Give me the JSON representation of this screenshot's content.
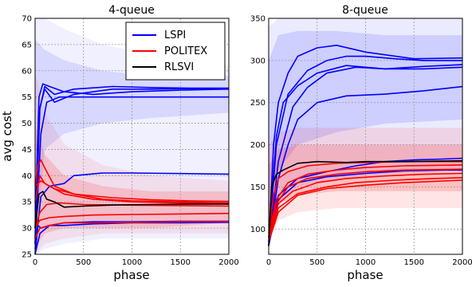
{
  "chart_data": [
    {
      "type": "line",
      "title": "4-queue",
      "xlabel": "phase",
      "ylabel": "avg cost",
      "xlim": [
        0,
        2000
      ],
      "ylim": [
        25,
        70
      ],
      "xticks": [
        "0",
        "500",
        "1000",
        "1500",
        "2000"
      ],
      "yticks": [
        "25",
        "30",
        "35",
        "40",
        "45",
        "50",
        "55",
        "60",
        "65",
        "70"
      ],
      "grid": true,
      "legend": {
        "placement": "top-right",
        "entries": [
          {
            "label": "LSPI",
            "color": "#0000ff"
          },
          {
            "label": "POLITEX",
            "color": "#ff0000"
          },
          {
            "label": "RLSVI",
            "color": "#000000"
          }
        ]
      },
      "bands": [
        {
          "color": "#0000ff",
          "opacity": 0.06,
          "x": [
            0,
            100,
            300,
            700,
            1200,
            2000
          ],
          "upper": [
            70,
            70,
            68,
            65,
            63,
            61
          ],
          "lower": [
            25,
            26,
            27,
            28,
            28,
            28
          ]
        },
        {
          "color": "#0000ff",
          "opacity": 0.1,
          "x": [
            0,
            100,
            300,
            700,
            1200,
            2000
          ],
          "upper": [
            66,
            64,
            62,
            60,
            59,
            59
          ],
          "lower": [
            27,
            45,
            48,
            50,
            51,
            52
          ]
        },
        {
          "color": "#ff0000",
          "opacity": 0.08,
          "x": [
            0,
            100,
            300,
            700,
            1200,
            2000
          ],
          "upper": [
            60,
            52,
            46,
            42,
            40,
            39
          ],
          "lower": [
            25,
            27,
            28,
            29,
            29,
            29
          ]
        },
        {
          "color": "#ff0000",
          "opacity": 0.14,
          "x": [
            0,
            100,
            300,
            700,
            1200,
            2000
          ],
          "upper": [
            50,
            44,
            40,
            38,
            37,
            37
          ],
          "lower": [
            26,
            29,
            30,
            30,
            30,
            31
          ]
        }
      ],
      "series": [
        {
          "color": "#0000ff",
          "x": [
            0,
            40,
            80,
            150,
            300,
            600,
            1000,
            1500,
            2000
          ],
          "y": [
            30,
            55,
            57.5,
            57,
            56,
            55.5,
            56,
            56.3,
            56.5
          ]
        },
        {
          "color": "#0000ff",
          "x": [
            0,
            40,
            100,
            200,
            400,
            800,
            1200,
            1600,
            2000
          ],
          "y": [
            28,
            52,
            57,
            55.5,
            56.5,
            57,
            56.8,
            56.7,
            56.7
          ]
        },
        {
          "color": "#0000ff",
          "x": [
            0,
            50,
            100,
            200,
            400,
            800,
            1200,
            1600,
            2000
          ],
          "y": [
            27,
            53,
            56.5,
            54,
            55.5,
            56.5,
            56.5,
            56.6,
            56.6
          ]
        },
        {
          "color": "#0000ff",
          "x": [
            0,
            60,
            120,
            250,
            500,
            800,
            1200,
            1600,
            2000
          ],
          "y": [
            27,
            48,
            54,
            55,
            55,
            55,
            55,
            55,
            55
          ]
        },
        {
          "color": "#0000ff",
          "x": [
            0,
            60,
            150,
            300,
            400,
            700,
            1000,
            1500,
            2000
          ],
          "y": [
            26,
            36,
            38,
            38.5,
            40,
            40.5,
            40.5,
            40.4,
            40.3
          ]
        },
        {
          "color": "#0000ff",
          "x": [
            0,
            30,
            60,
            150,
            300,
            600,
            1000,
            1500,
            2000
          ],
          "y": [
            25,
            30.5,
            30,
            30.5,
            31,
            31.2,
            31.2,
            31.3,
            31.3
          ]
        },
        {
          "color": "#0000ff",
          "x": [
            0,
            50,
            150,
            300,
            600,
            1000,
            1500,
            2000
          ],
          "y": [
            25,
            29,
            30.5,
            30.5,
            30.8,
            31,
            31,
            31.1
          ]
        },
        {
          "color": "#ff0000",
          "x": [
            0,
            30,
            60,
            100,
            200,
            400,
            700,
            1000,
            1500,
            2000
          ],
          "y": [
            38,
            42,
            43,
            41.5,
            38,
            36.5,
            35.5,
            35.2,
            35,
            34.8
          ]
        },
        {
          "color": "#ff0000",
          "x": [
            0,
            50,
            100,
            200,
            400,
            800,
            1200,
            1600,
            2000
          ],
          "y": [
            35,
            40,
            38.5,
            37.5,
            36.5,
            35.8,
            35.4,
            35.2,
            35.1
          ]
        },
        {
          "color": "#ff0000",
          "x": [
            0,
            60,
            150,
            300,
            600,
            1000,
            1500,
            2000
          ],
          "y": [
            38,
            39,
            38,
            36.5,
            35.5,
            35,
            34.8,
            34.6
          ]
        },
        {
          "color": "#ff0000",
          "x": [
            0,
            50,
            120,
            250,
            500,
            900,
            1400,
            2000
          ],
          "y": [
            30,
            33,
            34.5,
            34.8,
            34.5,
            34.4,
            34.3,
            34.2
          ]
        },
        {
          "color": "#ff0000",
          "x": [
            0,
            50,
            150,
            300,
            600,
            1000,
            1500,
            2000
          ],
          "y": [
            30,
            31.5,
            32,
            32.2,
            32.5,
            32.6,
            32.7,
            32.8
          ]
        },
        {
          "color": "#ff0000",
          "x": [
            0,
            50,
            150,
            300,
            600,
            1000,
            1500,
            2000
          ],
          "y": [
            28,
            30,
            30.5,
            31,
            31,
            31.1,
            31.2,
            31.2
          ]
        },
        {
          "color": "#000000",
          "x": [
            0,
            40,
            80,
            120,
            200,
            300,
            500,
            800,
            1200,
            1600,
            2000
          ],
          "y": [
            30,
            36.5,
            37,
            35.5,
            35,
            34,
            34.2,
            34.4,
            34.5,
            34.6,
            34.6
          ]
        }
      ]
    },
    {
      "type": "line",
      "title": "8-queue",
      "xlabel": "phase",
      "ylabel": "",
      "xlim": [
        0,
        2000
      ],
      "ylim": [
        70,
        350
      ],
      "xticks": [
        "0",
        "500",
        "1000",
        "1500",
        "2000"
      ],
      "yticks": [
        "100",
        "150",
        "200",
        "250",
        "300",
        "350"
      ],
      "grid": true,
      "bands": [
        {
          "color": "#0000ff",
          "opacity": 0.08,
          "x": [
            0,
            100,
            300,
            700,
            1200,
            2000
          ],
          "upper": [
            340,
            350,
            350,
            350,
            350,
            350
          ],
          "lower": [
            90,
            130,
            150,
            160,
            165,
            170
          ]
        },
        {
          "color": "#0000ff",
          "opacity": 0.12,
          "x": [
            0,
            100,
            300,
            700,
            1200,
            2000
          ],
          "upper": [
            300,
            330,
            335,
            335,
            330,
            330
          ],
          "lower": [
            100,
            170,
            200,
            215,
            225,
            230
          ]
        },
        {
          "color": "#ff0000",
          "opacity": 0.1,
          "x": [
            0,
            100,
            300,
            700,
            1200,
            2000
          ],
          "upper": [
            200,
            215,
            220,
            220,
            220,
            220
          ],
          "lower": [
            85,
            110,
            120,
            125,
            125,
            125
          ]
        },
        {
          "color": "#ff0000",
          "opacity": 0.16,
          "x": [
            0,
            100,
            300,
            700,
            1200,
            2000
          ],
          "upper": [
            175,
            195,
            200,
            200,
            200,
            200
          ],
          "lower": [
            95,
            130,
            140,
            145,
            145,
            145
          ]
        }
      ],
      "series": [
        {
          "color": "#0000ff",
          "x": [
            0,
            50,
            100,
            200,
            300,
            500,
            700,
            1000,
            1500,
            2000
          ],
          "y": [
            80,
            200,
            250,
            285,
            305,
            315,
            318,
            310,
            302,
            303
          ]
        },
        {
          "color": "#0000ff",
          "x": [
            0,
            80,
            200,
            400,
            600,
            800,
            1000,
            1300,
            1600,
            2000
          ],
          "y": [
            85,
            200,
            260,
            288,
            300,
            305,
            305,
            302,
            300,
            300
          ]
        },
        {
          "color": "#0000ff",
          "x": [
            0,
            80,
            150,
            300,
            500,
            800,
            1200,
            1600,
            2000
          ],
          "y": [
            90,
            210,
            250,
            270,
            285,
            294,
            290,
            293,
            295
          ]
        },
        {
          "color": "#0000ff",
          "x": [
            0,
            100,
            250,
            400,
            600,
            900,
            1200,
            1600,
            2000
          ],
          "y": [
            80,
            180,
            245,
            268,
            285,
            292,
            290,
            290,
            292
          ]
        },
        {
          "color": "#0000ff",
          "x": [
            0,
            100,
            200,
            300,
            500,
            800,
            1200,
            1600,
            2000
          ],
          "y": [
            80,
            160,
            200,
            230,
            250,
            258,
            260,
            264,
            269
          ]
        },
        {
          "color": "#0000ff",
          "x": [
            0,
            100,
            300,
            600,
            900,
            1200,
            1500,
            1800,
            2000
          ],
          "y": [
            85,
            140,
            160,
            168,
            175,
            180,
            182,
            183,
            184
          ]
        },
        {
          "color": "#0000ff",
          "x": [
            0,
            100,
            300,
            600,
            1000,
            1400,
            1800,
            2000
          ],
          "y": [
            80,
            135,
            155,
            162,
            166,
            169,
            170,
            170
          ]
        },
        {
          "color": "#ff0000",
          "x": [
            0,
            50,
            100,
            200,
            400,
            700,
            1000,
            1500,
            2000
          ],
          "y": [
            95,
            140,
            160,
            168,
            175,
            178,
            179,
            180,
            180
          ]
        },
        {
          "color": "#ff0000",
          "x": [
            0,
            80,
            200,
            400,
            700,
            1000,
            1400,
            2000
          ],
          "y": [
            95,
            135,
            155,
            165,
            170,
            173,
            175,
            176
          ]
        },
        {
          "color": "#ff0000",
          "x": [
            0,
            80,
            200,
            400,
            700,
            1000,
            1400,
            2000
          ],
          "y": [
            90,
            130,
            150,
            160,
            165,
            168,
            170,
            171
          ]
        },
        {
          "color": "#ff0000",
          "x": [
            0,
            100,
            250,
            500,
            800,
            1200,
            1600,
            2000
          ],
          "y": [
            90,
            130,
            145,
            155,
            160,
            163,
            165,
            166
          ]
        },
        {
          "color": "#ff0000",
          "x": [
            0,
            100,
            300,
            600,
            900,
            1300,
            1700,
            2000
          ],
          "y": [
            85,
            125,
            142,
            150,
            155,
            158,
            160,
            161
          ]
        },
        {
          "color": "#ff0000",
          "x": [
            0,
            100,
            300,
            600,
            1000,
            1400,
            2000
          ],
          "y": [
            85,
            120,
            140,
            148,
            152,
            155,
            158
          ]
        },
        {
          "color": "#000000",
          "x": [
            0,
            30,
            80,
            150,
            300,
            500,
            800,
            1000,
            1400,
            2000
          ],
          "y": [
            80,
            150,
            165,
            170,
            178,
            180,
            179,
            180,
            180,
            181
          ]
        }
      ]
    }
  ]
}
